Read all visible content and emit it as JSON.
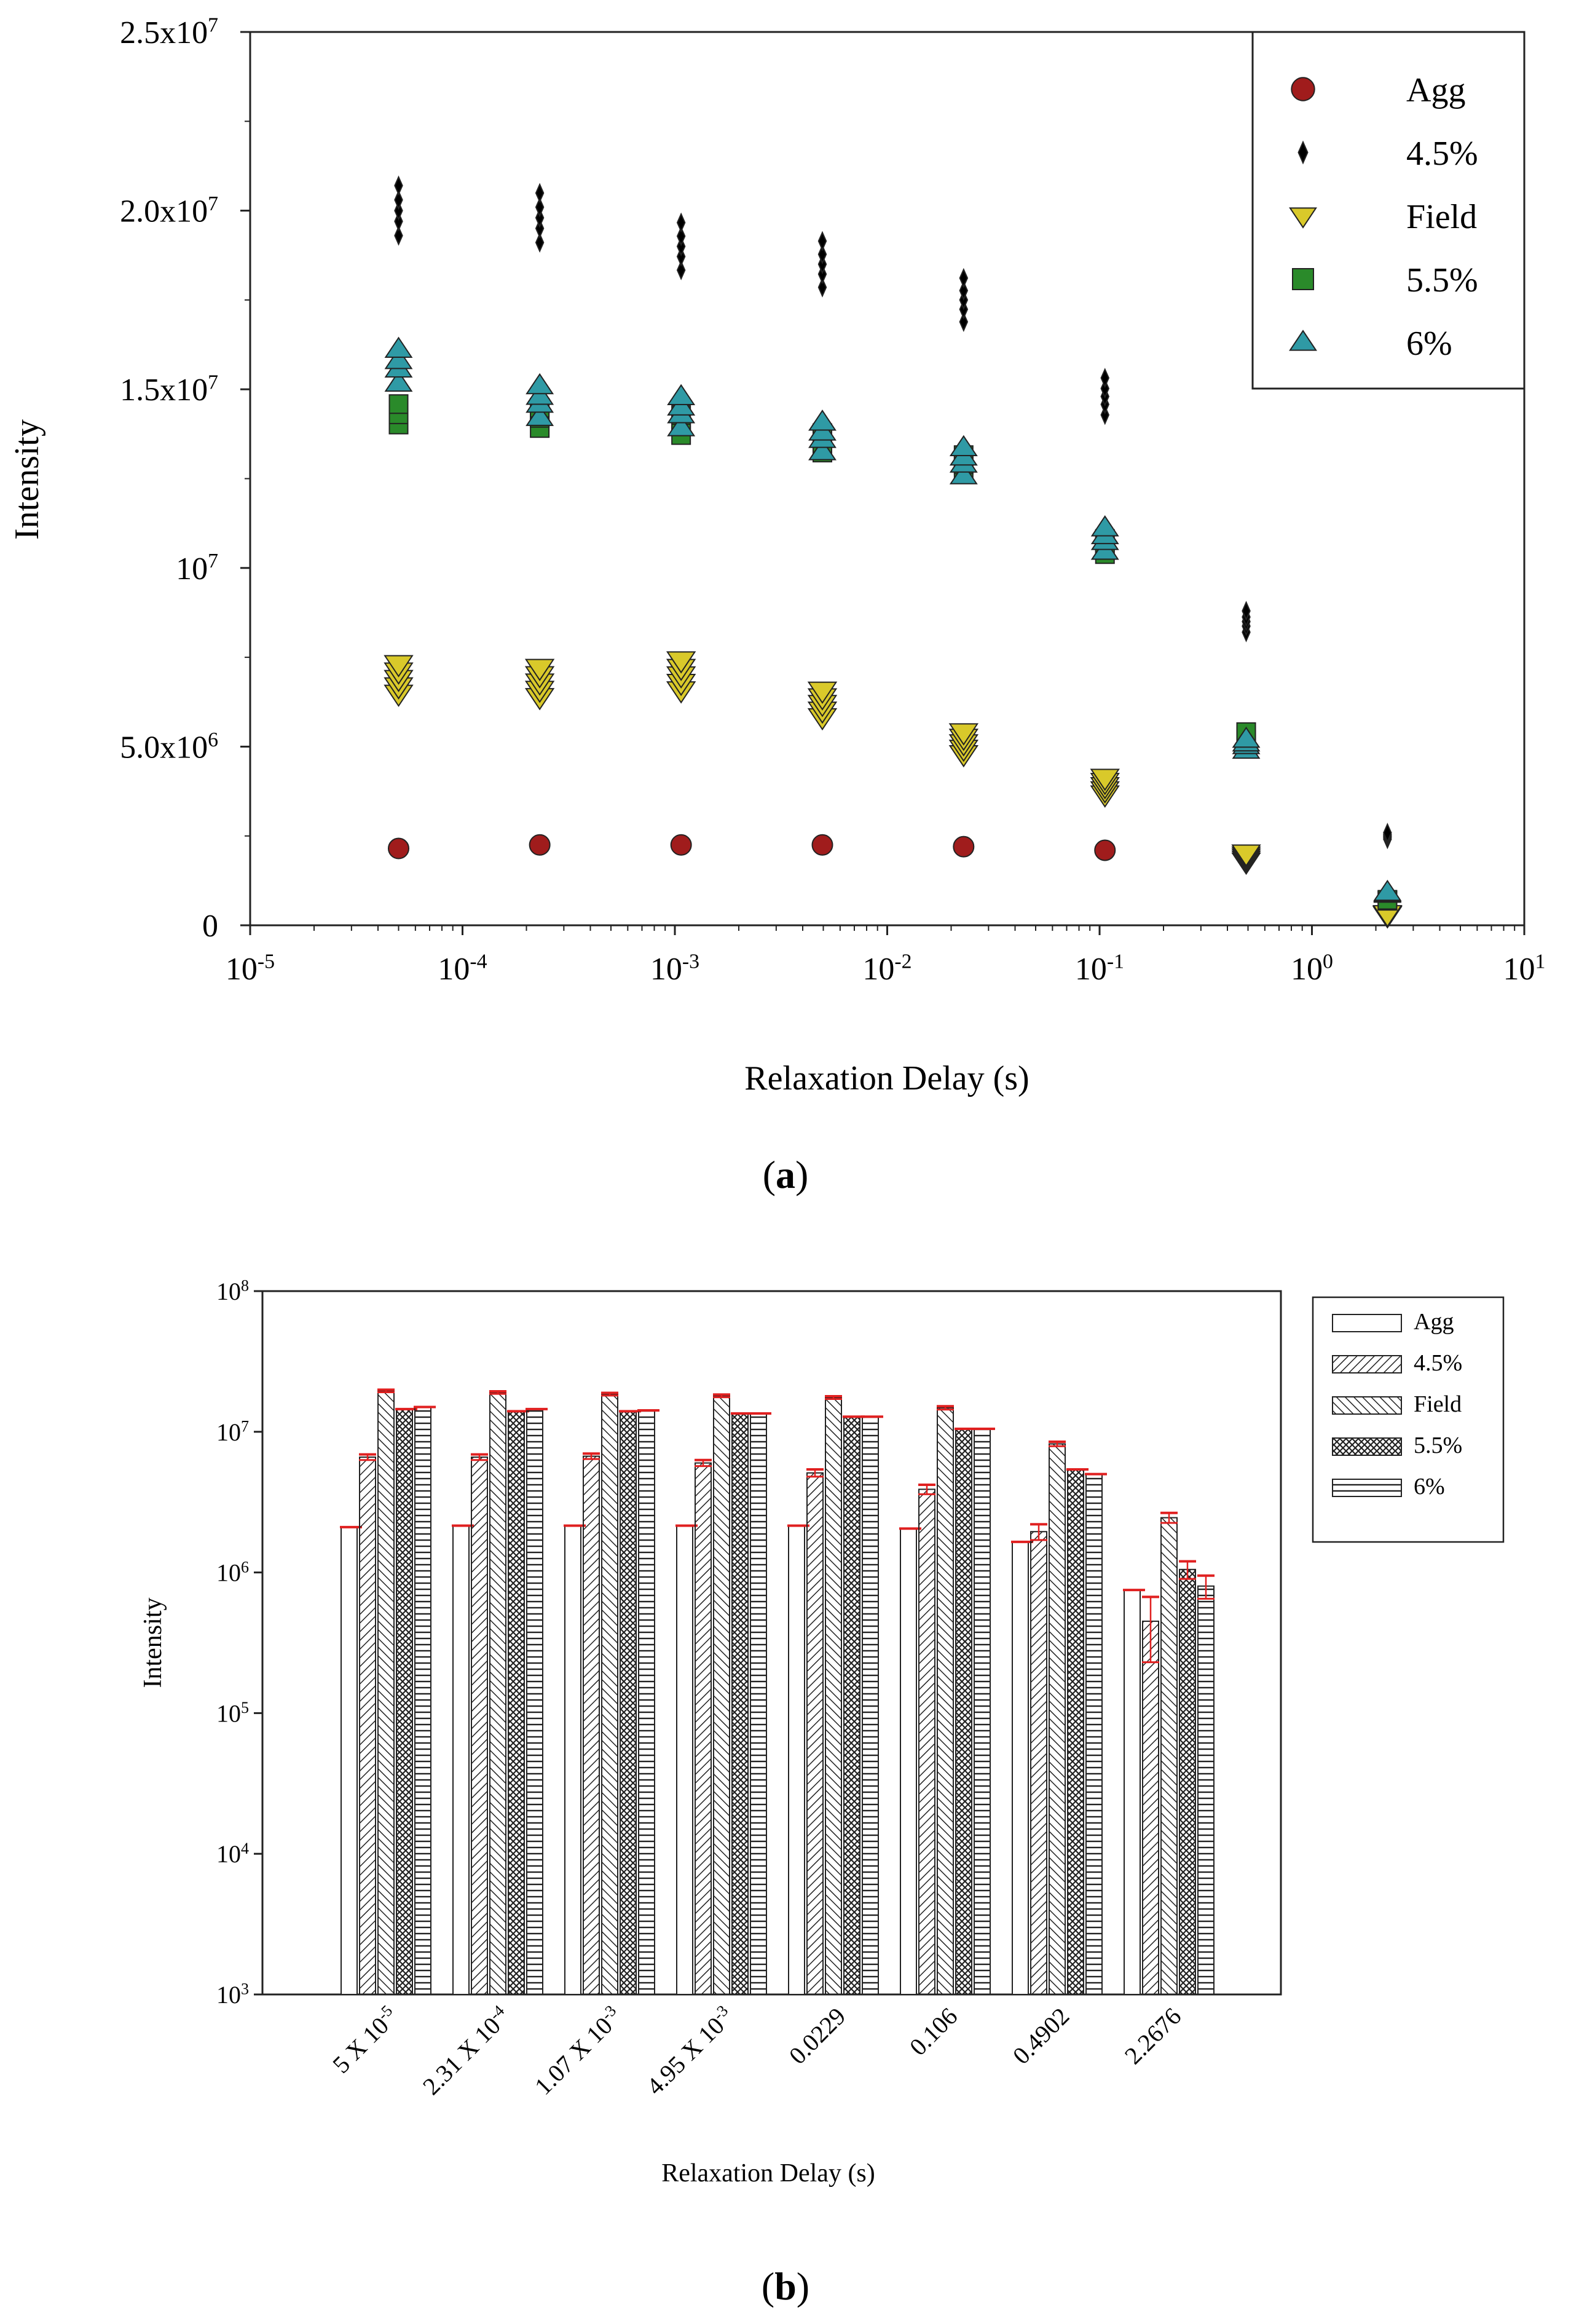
{
  "panel_a_label": "a",
  "panel_b_label": "b",
  "colors": {
    "agg": "#a01c1c",
    "pct45": "#000000",
    "field": "#d9c92a",
    "pct55": "#2a8a2a",
    "pct6": "#2f9aa5",
    "errorbar": "#e02020"
  },
  "chart_data": [
    {
      "type": "scatter",
      "title": "",
      "xlabel": "Relaxation Delay (s)",
      "ylabel": "Intensity",
      "xscale": "log",
      "xlim": [
        1e-05,
        10
      ],
      "ylim": [
        0,
        25000000
      ],
      "x_ticks": [
        {
          "base": "10",
          "exp": "-5"
        },
        {
          "base": "10",
          "exp": "-4"
        },
        {
          "base": "10",
          "exp": "-3"
        },
        {
          "base": "10",
          "exp": "-2"
        },
        {
          "base": "10",
          "exp": "-1"
        },
        {
          "base": "10",
          "exp": "0"
        },
        {
          "base": "10",
          "exp": "1"
        }
      ],
      "y_ticks": [
        {
          "value": 0,
          "mant": "0",
          "exp": ""
        },
        {
          "value": 5000000,
          "mant": "5.0x10",
          "exp": "6"
        },
        {
          "value": 10000000,
          "mant": "10",
          "exp": "7"
        },
        {
          "value": 15000000,
          "mant": "1.5x10",
          "exp": "7"
        },
        {
          "value": 20000000,
          "mant": "2.0x10",
          "exp": "7"
        },
        {
          "value": 25000000,
          "mant": "2.5x10",
          "exp": "7"
        }
      ],
      "legend_position": "top-right",
      "x": [
        5e-05,
        0.000231,
        0.00107,
        0.00495,
        0.0229,
        0.106,
        0.4902,
        2.2676
      ],
      "series": [
        {
          "name": "Agg",
          "marker": "circle",
          "values": [
            2150000,
            2250000,
            2250000,
            2250000,
            2200000,
            2100000,
            null,
            null
          ]
        },
        {
          "name": "4.5%",
          "marker": "diamond",
          "values": [
            20000000,
            19800000,
            19000000,
            18500000,
            17500000,
            14800000,
            8500000,
            2500000
          ]
        },
        {
          "name": "Field",
          "marker": "triangle-down",
          "values": [
            6900000,
            6800000,
            7000000,
            6200000,
            5100000,
            3900000,
            1900000,
            300000
          ]
        },
        {
          "name": "5.5%",
          "marker": "square",
          "values": [
            14300000,
            14200000,
            14000000,
            13500000,
            12900000,
            10600000,
            5300000,
            700000
          ]
        },
        {
          "name": "6%",
          "marker": "triangle-up",
          "values": [
            15800000,
            14800000,
            14500000,
            13800000,
            13100000,
            10900000,
            5100000,
            900000
          ]
        }
      ]
    },
    {
      "type": "bar",
      "title": "",
      "xlabel": "Relaxation Delay (s)",
      "ylabel": "Intensity",
      "yscale": "log",
      "ylim": [
        1000,
        100000000
      ],
      "y_ticks": [
        {
          "base": "10",
          "exp": "3"
        },
        {
          "base": "10",
          "exp": "4"
        },
        {
          "base": "10",
          "exp": "5"
        },
        {
          "base": "10",
          "exp": "6"
        },
        {
          "base": "10",
          "exp": "7"
        },
        {
          "base": "10",
          "exp": "8"
        }
      ],
      "categories": [
        {
          "main": "5 X 10",
          "exp": "-5"
        },
        {
          "main": "2.31 X 10",
          "exp": "-4"
        },
        {
          "main": "1.07 X 10",
          "exp": "-3"
        },
        {
          "main": "4.95 X 10",
          "exp": "-3"
        },
        {
          "main": "0.0229",
          "exp": ""
        },
        {
          "main": "0.106",
          "exp": ""
        },
        {
          "main": "0.4902",
          "exp": ""
        },
        {
          "main": "2.2676",
          "exp": ""
        }
      ],
      "legend_position": "top-right",
      "series": [
        {
          "name": "Agg",
          "pattern": "none",
          "values": [
            2100000,
            2150000,
            2150000,
            2150000,
            2150000,
            2050000,
            1650000,
            750000
          ],
          "errors": [
            0,
            0,
            0,
            0,
            0,
            0,
            0,
            0
          ]
        },
        {
          "name": "4.5%",
          "pattern": "diag-right",
          "values": [
            6600000,
            6600000,
            6700000,
            6000000,
            5100000,
            3900000,
            1950000,
            450000
          ],
          "errors": [
            300000,
            300000,
            300000,
            300000,
            300000,
            300000,
            250000,
            220000
          ]
        },
        {
          "name": "Field",
          "pattern": "diag-left",
          "values": [
            19500000,
            19000000,
            18500000,
            18000000,
            17500000,
            14800000,
            8200000,
            2450000
          ],
          "errors": [
            400000,
            400000,
            400000,
            400000,
            400000,
            400000,
            300000,
            200000
          ]
        },
        {
          "name": "5.5%",
          "pattern": "crosshatch",
          "values": [
            14500000,
            14000000,
            14000000,
            13500000,
            12800000,
            10500000,
            5400000,
            1050000
          ],
          "errors": [
            0,
            0,
            0,
            0,
            0,
            0,
            0,
            150000
          ]
        },
        {
          "name": "6%",
          "pattern": "horizontal",
          "values": [
            15000000,
            14500000,
            14200000,
            13500000,
            12800000,
            10500000,
            5000000,
            800000
          ],
          "errors": [
            0,
            0,
            0,
            0,
            0,
            0,
            0,
            150000
          ]
        }
      ]
    }
  ]
}
